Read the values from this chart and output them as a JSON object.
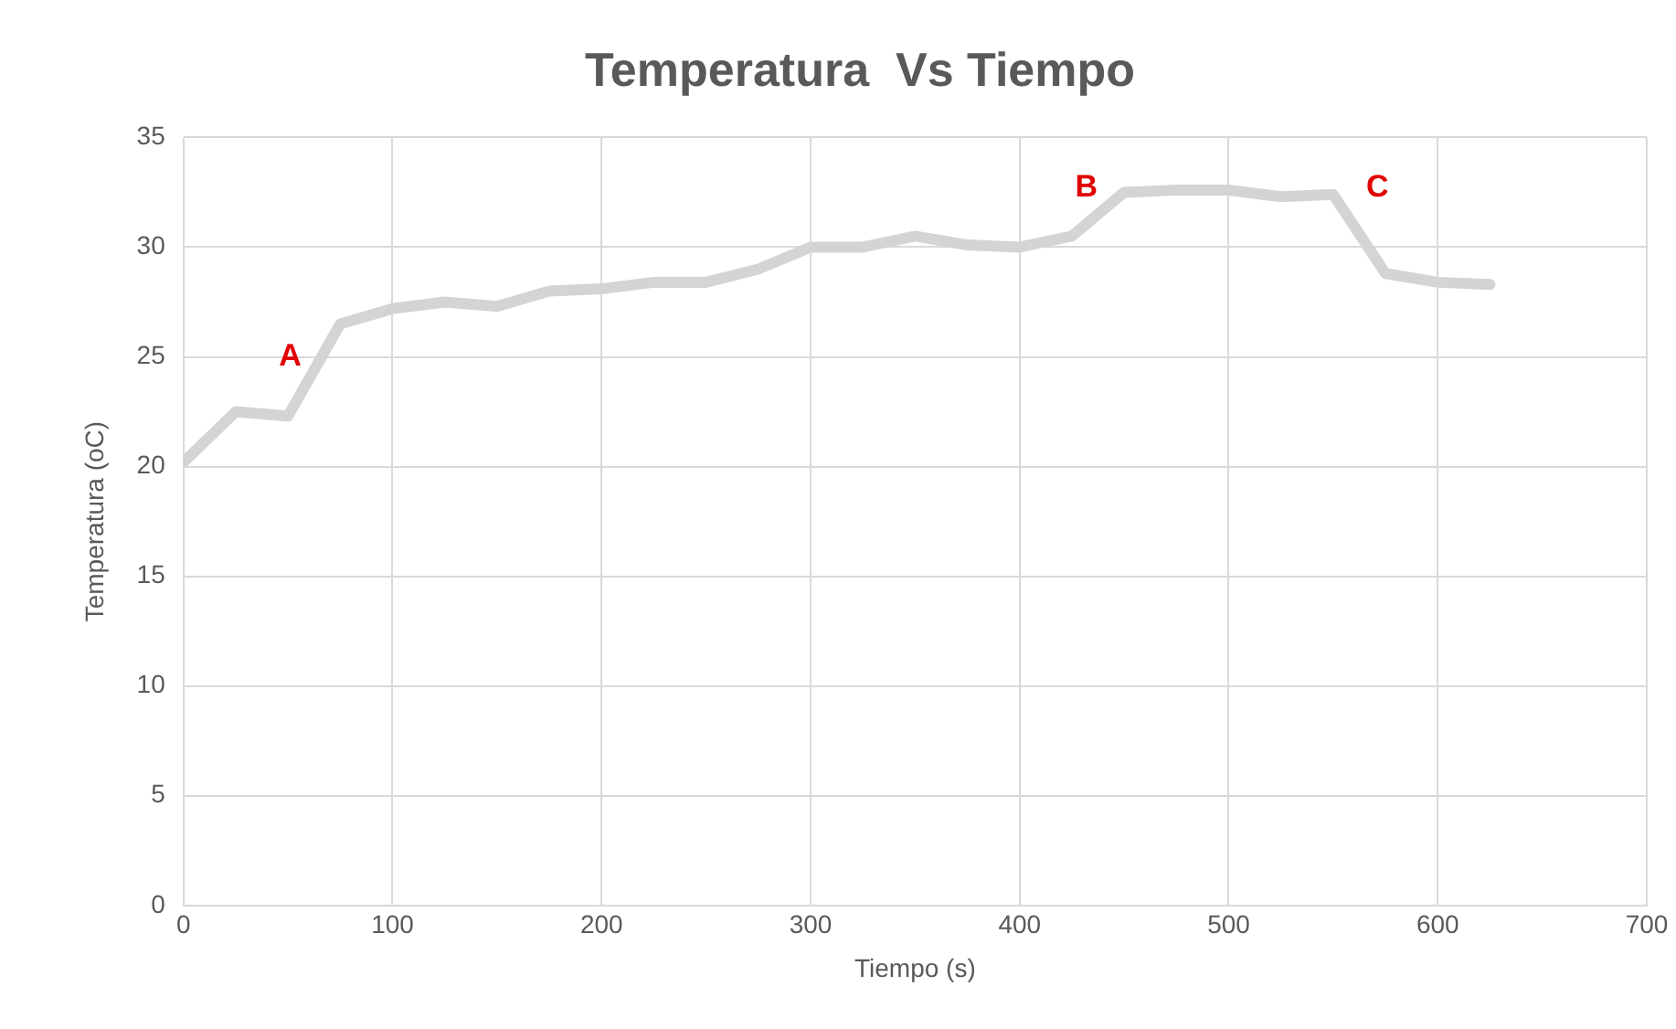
{
  "chart_data": {
    "type": "line",
    "title": "Temperatura  Vs Tiempo",
    "xlabel": "Tiempo (s)",
    "ylabel": "Temperatura (oC)",
    "x": [
      0,
      25,
      50,
      75,
      100,
      125,
      150,
      175,
      200,
      225,
      250,
      275,
      300,
      325,
      350,
      375,
      400,
      425,
      450,
      475,
      500,
      525,
      550,
      575,
      600,
      625
    ],
    "series": [
      {
        "color": "#d4d4d4",
        "values": [
          20.2,
          22.5,
          22.3,
          26.5,
          27.2,
          27.5,
          27.3,
          28,
          28.1,
          28.4,
          28.4,
          29,
          30,
          30,
          30.5,
          30.1,
          30,
          30.5,
          32.5,
          32.6,
          32.6,
          32.3,
          32.4,
          28.8,
          28.4,
          28.3
        ]
      }
    ],
    "xlim": [
      0,
      700
    ],
    "xticks": [
      0,
      100,
      200,
      300,
      400,
      500,
      600,
      700
    ],
    "ylim": [
      0,
      35
    ],
    "yticks": [
      0,
      5,
      10,
      15,
      20,
      25,
      30,
      35
    ],
    "grid": true,
    "legend": false,
    "marker": "none",
    "line_style": "solid",
    "annotations": [
      "A",
      "B",
      "C"
    ]
  }
}
